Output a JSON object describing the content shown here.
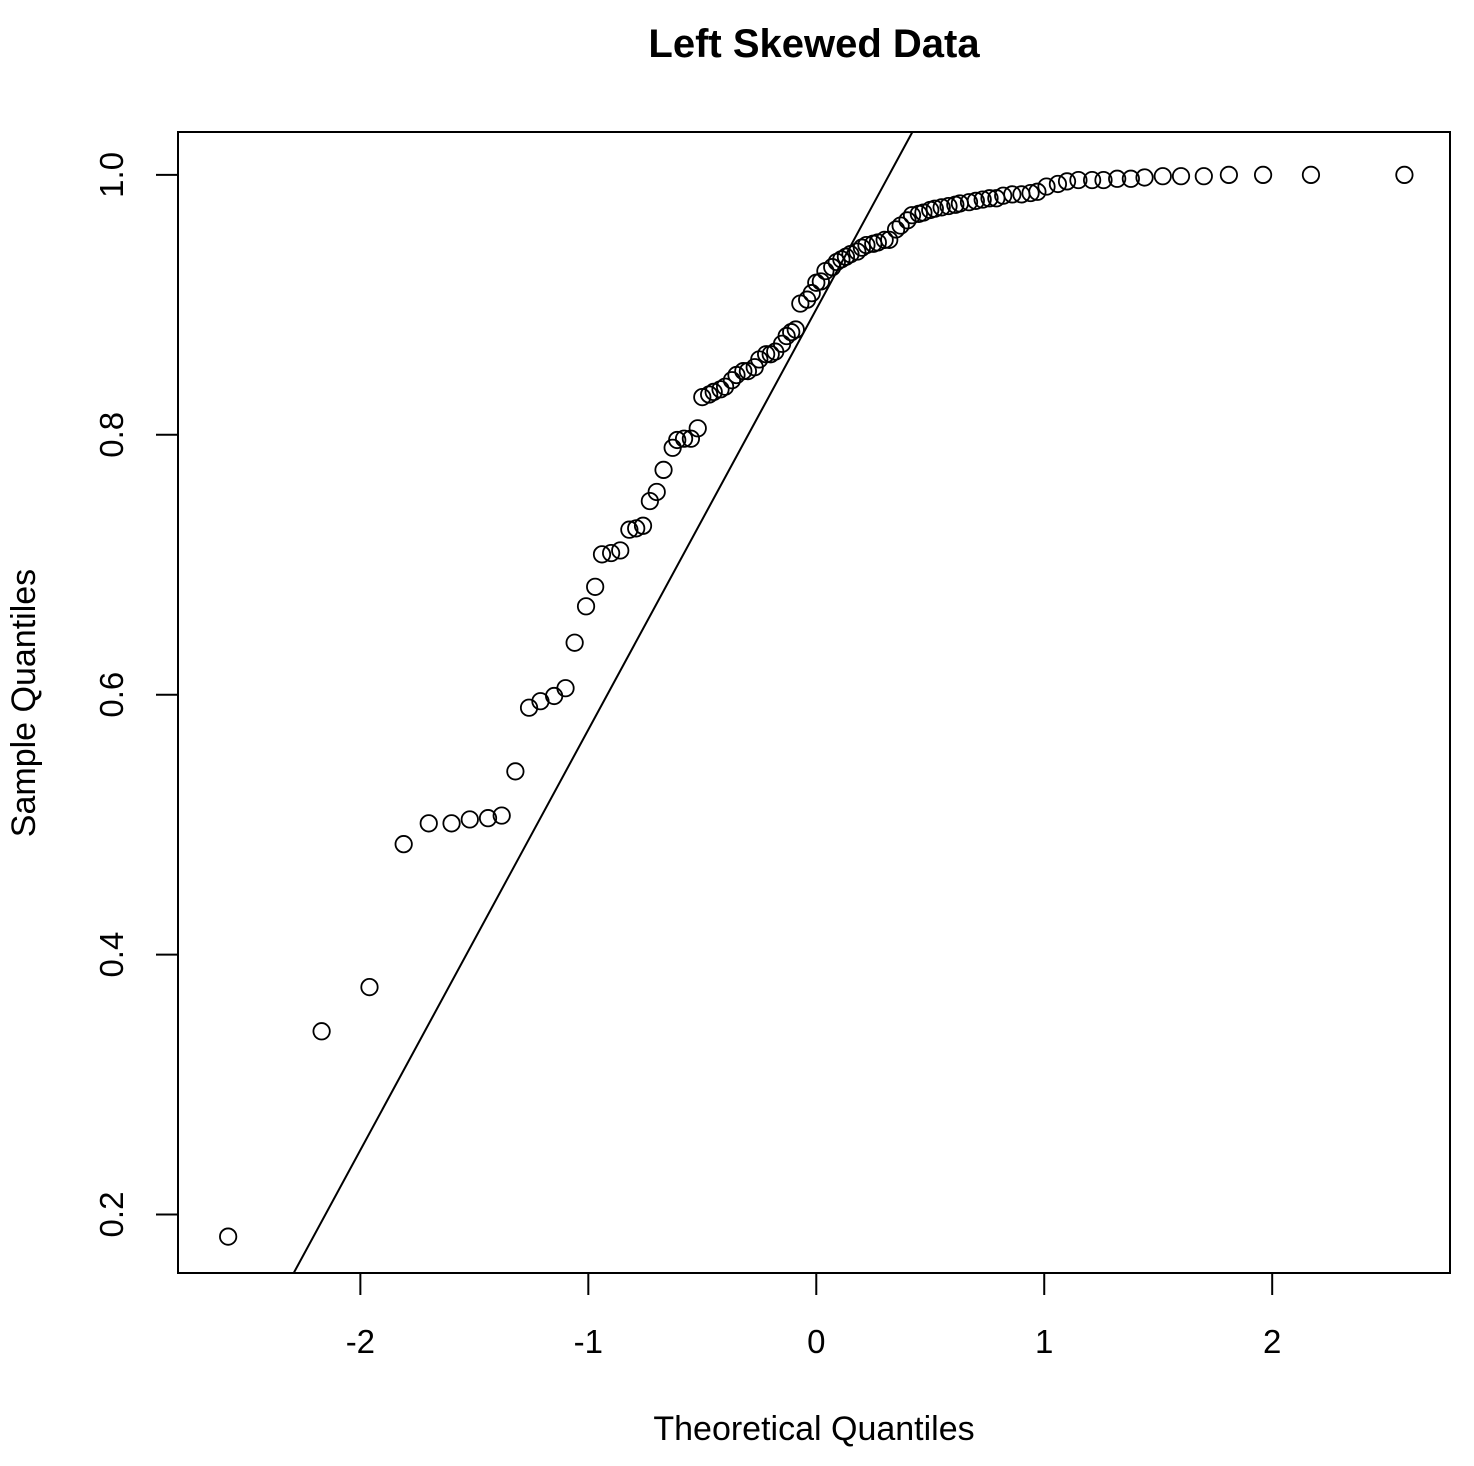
{
  "chart_data": {
    "type": "scatter",
    "title": "Left Skewed Data",
    "xlabel": "Theoretical Quantiles",
    "ylabel": "Sample Quantiles",
    "xlim": [
      -2.8,
      2.78
    ],
    "ylim": [
      0.155,
      1.033
    ],
    "x_ticks": [
      -2,
      -1,
      0,
      1,
      2
    ],
    "x_tick_labels": [
      "-2",
      "-1",
      "0",
      "1",
      "2"
    ],
    "y_ticks": [
      0.2,
      0.4,
      0.6,
      0.8,
      1.0
    ],
    "y_tick_labels": [
      "0.2",
      "0.4",
      "0.6",
      "0.8",
      "1.0"
    ],
    "grid": false,
    "reference_line": {
      "slope": 0.3235,
      "intercept": 0.8966
    },
    "points": [
      [
        -2.58,
        0.183
      ],
      [
        -2.17,
        0.341
      ],
      [
        -1.96,
        0.375
      ],
      [
        -1.81,
        0.485
      ],
      [
        -1.7,
        0.501
      ],
      [
        -1.6,
        0.501
      ],
      [
        -1.52,
        0.504
      ],
      [
        -1.44,
        0.505
      ],
      [
        -1.38,
        0.507
      ],
      [
        -1.32,
        0.541
      ],
      [
        -1.26,
        0.59
      ],
      [
        -1.21,
        0.595
      ],
      [
        -1.15,
        0.599
      ],
      [
        -1.1,
        0.605
      ],
      [
        -1.06,
        0.64
      ],
      [
        -1.01,
        0.668
      ],
      [
        -0.97,
        0.683
      ],
      [
        -0.94,
        0.708
      ],
      [
        -0.9,
        0.709
      ],
      [
        -0.86,
        0.711
      ],
      [
        -0.82,
        0.727
      ],
      [
        -0.79,
        0.728
      ],
      [
        -0.76,
        0.73
      ],
      [
        -0.73,
        0.749
      ],
      [
        -0.7,
        0.756
      ],
      [
        -0.67,
        0.773
      ],
      [
        -0.63,
        0.79
      ],
      [
        -0.61,
        0.796
      ],
      [
        -0.58,
        0.797
      ],
      [
        -0.55,
        0.797
      ],
      [
        -0.52,
        0.805
      ],
      [
        -0.5,
        0.829
      ],
      [
        -0.47,
        0.831
      ],
      [
        -0.45,
        0.833
      ],
      [
        -0.42,
        0.835
      ],
      [
        -0.4,
        0.837
      ],
      [
        -0.37,
        0.842
      ],
      [
        -0.35,
        0.846
      ],
      [
        -0.32,
        0.849
      ],
      [
        -0.3,
        0.849
      ],
      [
        -0.27,
        0.852
      ],
      [
        -0.25,
        0.858
      ],
      [
        -0.22,
        0.862
      ],
      [
        -0.2,
        0.862
      ],
      [
        -0.18,
        0.864
      ],
      [
        -0.15,
        0.87
      ],
      [
        -0.13,
        0.876
      ],
      [
        -0.11,
        0.879
      ],
      [
        -0.09,
        0.881
      ],
      [
        -0.07,
        0.901
      ],
      [
        -0.04,
        0.904
      ],
      [
        -0.02,
        0.909
      ],
      [
        0.0,
        0.917
      ],
      [
        0.02,
        0.918
      ],
      [
        0.04,
        0.926
      ],
      [
        0.07,
        0.929
      ],
      [
        0.09,
        0.933
      ],
      [
        0.11,
        0.935
      ],
      [
        0.13,
        0.937
      ],
      [
        0.15,
        0.939
      ],
      [
        0.18,
        0.941
      ],
      [
        0.2,
        0.944
      ],
      [
        0.22,
        0.946
      ],
      [
        0.25,
        0.947
      ],
      [
        0.27,
        0.948
      ],
      [
        0.3,
        0.95
      ],
      [
        0.32,
        0.95
      ],
      [
        0.35,
        0.958
      ],
      [
        0.37,
        0.961
      ],
      [
        0.4,
        0.965
      ],
      [
        0.42,
        0.969
      ],
      [
        0.45,
        0.97
      ],
      [
        0.47,
        0.971
      ],
      [
        0.5,
        0.973
      ],
      [
        0.52,
        0.974
      ],
      [
        0.55,
        0.975
      ],
      [
        0.58,
        0.976
      ],
      [
        0.61,
        0.977
      ],
      [
        0.63,
        0.978
      ],
      [
        0.67,
        0.979
      ],
      [
        0.7,
        0.98
      ],
      [
        0.73,
        0.981
      ],
      [
        0.76,
        0.982
      ],
      [
        0.79,
        0.982
      ],
      [
        0.82,
        0.984
      ],
      [
        0.86,
        0.985
      ],
      [
        0.9,
        0.985
      ],
      [
        0.94,
        0.986
      ],
      [
        0.97,
        0.987
      ],
      [
        1.01,
        0.991
      ],
      [
        1.06,
        0.993
      ],
      [
        1.1,
        0.995
      ],
      [
        1.15,
        0.996
      ],
      [
        1.21,
        0.996
      ],
      [
        1.26,
        0.996
      ],
      [
        1.32,
        0.997
      ],
      [
        1.38,
        0.997
      ],
      [
        1.44,
        0.998
      ],
      [
        1.52,
        0.999
      ],
      [
        1.6,
        0.999
      ],
      [
        1.7,
        0.999
      ],
      [
        1.81,
        1.0
      ],
      [
        1.96,
        1.0
      ],
      [
        2.17,
        1.0
      ],
      [
        2.58,
        1.0
      ]
    ]
  }
}
